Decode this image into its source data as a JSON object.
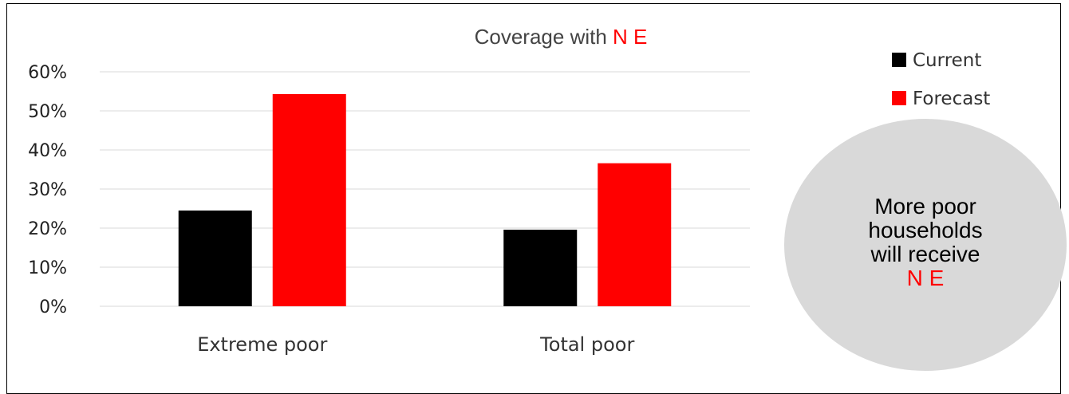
{
  "chart_data": {
    "type": "bar",
    "title_prefix": "Coverage with ",
    "title_highlight": "N E",
    "categories": [
      "Extreme poor",
      "Total poor"
    ],
    "series": [
      {
        "name": "Current",
        "color": "#000000",
        "values": [
          24.5,
          19.6
        ]
      },
      {
        "name": "Forecast",
        "color": "#ff0000",
        "values": [
          54.3,
          36.6
        ]
      }
    ],
    "ylim": [
      0,
      60
    ],
    "yticks": [
      0,
      10,
      20,
      30,
      40,
      50,
      60
    ],
    "ytick_format": "percent",
    "grid": true,
    "legend": "top-right",
    "xlabel": "",
    "ylabel": ""
  },
  "callout": {
    "lines": [
      "More poor",
      "households",
      "will receive"
    ],
    "highlight": "N E",
    "bg_color": "#d9d9d9",
    "highlight_color": "#ff0000"
  }
}
